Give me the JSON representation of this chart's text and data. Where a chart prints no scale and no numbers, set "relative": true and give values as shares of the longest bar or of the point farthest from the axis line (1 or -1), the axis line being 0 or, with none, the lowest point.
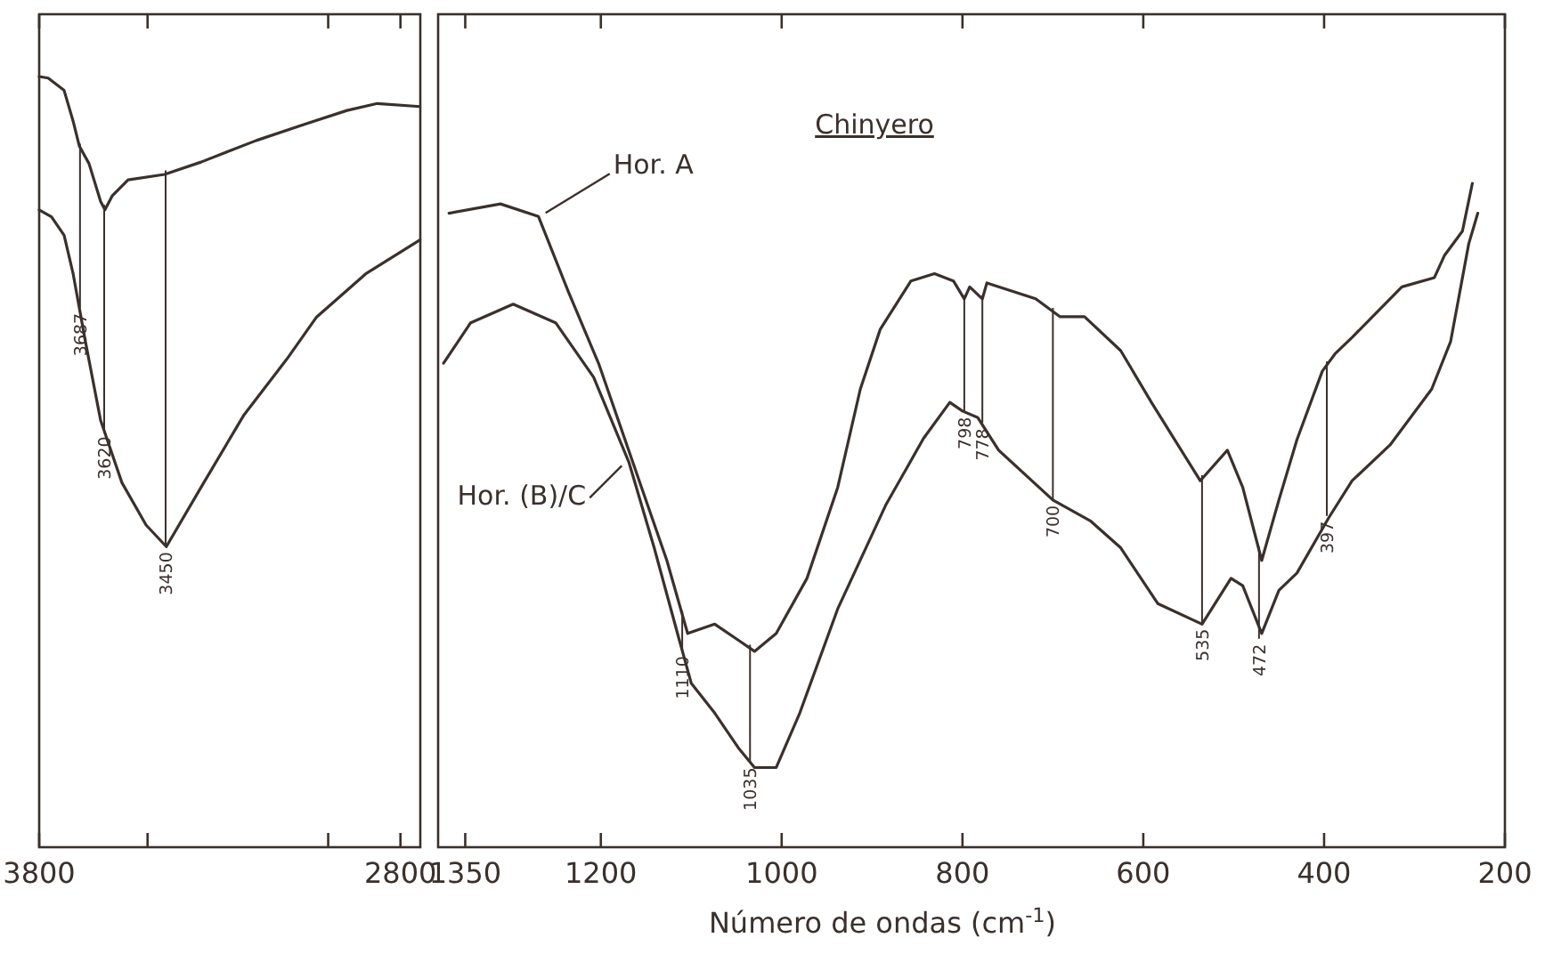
{
  "chart_data": [
    {
      "type": "line",
      "relative": true,
      "tick_labels": "x",
      "xlim": [
        3800,
        2745
      ],
      "xticks": [
        3800,
        {
          "value": 3500,
          "label": null
        },
        {
          "value": 3000,
          "label": null
        },
        2800
      ],
      "series": [
        {
          "color": "#3a302c",
          "x": [
            3800,
            3775,
            3731,
            3706,
            3689,
            3662,
            3630,
            3618,
            3598,
            3554,
            3453,
            3352,
            3199,
            3066,
            2948,
            2864,
            2746
          ],
          "values": [
            1.0,
            0.998,
            0.982,
            0.942,
            0.91,
            0.887,
            0.838,
            0.827,
            0.845,
            0.866,
            0.873,
            0.889,
            0.917,
            0.938,
            0.956,
            0.965,
            0.961
          ]
        },
        {
          "color": "#3a302c",
          "x": [
            3800,
            3766,
            3731,
            3706,
            3672,
            3630,
            3571,
            3504,
            3448,
            3352,
            3233,
            3115,
            3032,
            2896,
            2746
          ],
          "values": [
            0.827,
            0.818,
            0.794,
            0.744,
            0.656,
            0.554,
            0.473,
            0.418,
            0.39,
            0.467,
            0.561,
            0.633,
            0.688,
            0.744,
            0.788
          ]
        }
      ],
      "annotations": [
        {
          "text": "3687",
          "x": 3687,
          "y": 0.7
        },
        {
          "text": "3620",
          "x": 3620,
          "y": 0.54
        },
        {
          "text": "3450",
          "x": 3450,
          "y": 0.39
        }
      ]
    },
    {
      "type": "line",
      "relative": true,
      "tick_labels": "x",
      "title": "Chinyero",
      "xlabel": "Número de ondas (cm$^{-1}$)",
      "xlim": [
        1380,
        200
      ],
      "xticks": [
        1350,
        1200,
        1000,
        800,
        600,
        400,
        200
      ],
      "series": [
        {
          "name": "Hor. A",
          "color": "#3a302c",
          "x": [
            1368,
            1311,
            1269,
            1236,
            1202,
            1155,
            1127,
            1104,
            1074,
            1047,
            1030,
            1006,
            972,
            938,
            913,
            891,
            857,
            831,
            810,
            798,
            792,
            778,
            773,
            719,
            692,
            665,
            625,
            591,
            537,
            507,
            490,
            469,
            450,
            430,
            402,
            388,
            369,
            314,
            278,
            267,
            247,
            236
          ],
          "values": [
            0.955,
            0.969,
            0.95,
            0.837,
            0.727,
            0.542,
            0.432,
            0.322,
            0.336,
            0.311,
            0.295,
            0.322,
            0.405,
            0.542,
            0.69,
            0.78,
            0.853,
            0.864,
            0.853,
            0.826,
            0.844,
            0.826,
            0.85,
            0.826,
            0.799,
            0.799,
            0.748,
            0.67,
            0.552,
            0.598,
            0.542,
            0.432,
            0.523,
            0.614,
            0.717,
            0.743,
            0.768,
            0.844,
            0.858,
            0.891,
            0.928,
            1.0
          ]
        },
        {
          "name": "Hor. (B)/C",
          "color": "#3a302c",
          "x": [
            1374,
            1344,
            1297,
            1250,
            1208,
            1169,
            1141,
            1113,
            1100,
            1074,
            1047,
            1030,
            1006,
            980,
            938,
            885,
            843,
            814,
            800,
            783,
            760,
            700,
            658,
            625,
            584,
            535,
            503,
            490,
            469,
            450,
            430,
            395,
            369,
            327,
            281,
            260,
            240,
            230
          ],
          "values": [
            0.729,
            0.79,
            0.818,
            0.79,
            0.708,
            0.58,
            0.451,
            0.311,
            0.247,
            0.202,
            0.148,
            0.12,
            0.12,
            0.202,
            0.359,
            0.515,
            0.616,
            0.67,
            0.657,
            0.647,
            0.598,
            0.523,
            0.491,
            0.451,
            0.367,
            0.336,
            0.405,
            0.394,
            0.322,
            0.387,
            0.413,
            0.496,
            0.552,
            0.606,
            0.69,
            0.762,
            0.909,
            0.955
          ]
        }
      ],
      "annotations": [
        {
          "text": "1110",
          "x": 1110,
          "y": 0.296
        },
        {
          "text": "1035",
          "x": 1035,
          "y": 0.128
        },
        {
          "text": "798",
          "x": 798,
          "y": 0.656
        },
        {
          "text": "778",
          "x": 778,
          "y": 0.639
        },
        {
          "text": "700",
          "x": 700,
          "y": 0.523
        },
        {
          "text": "535",
          "x": 535,
          "y": 0.337
        },
        {
          "text": "472",
          "x": 472,
          "y": 0.314
        },
        {
          "text": "397",
          "x": 397,
          "y": 0.499
        }
      ]
    }
  ]
}
